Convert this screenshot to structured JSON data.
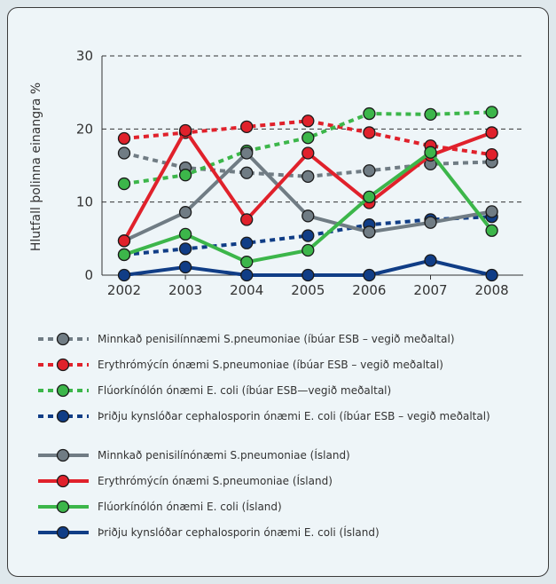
{
  "chart_data": {
    "type": "line",
    "ylabel": "Hlutfall þolinna einangra %",
    "xlabel": "",
    "ylim": [
      0,
      30
    ],
    "yticks": [
      0,
      10,
      20,
      30
    ],
    "gridlines": [
      10,
      20,
      30
    ],
    "categories": [
      "2002",
      "2003",
      "2004",
      "2005",
      "2006",
      "2007",
      "2008"
    ],
    "series": [
      {
        "name": "Minnkað penisilínnæmi S.pneumoniae (íbúar ESB – vegið meðaltal)",
        "color": "#707c84",
        "dashed": true,
        "values": [
          16.7,
          14.7,
          14.0,
          13.5,
          14.3,
          15.2,
          15.5
        ]
      },
      {
        "name": "Erythrómýcín ónæmi S.pneumoniae (íbúar ESB – vegið meðaltal)",
        "color": "#e0212b",
        "dashed": true,
        "values": [
          18.7,
          19.5,
          20.3,
          21.1,
          19.5,
          17.7,
          16.5
        ]
      },
      {
        "name": "Flúorkínólón ónæmi E. coli (íbúar ESB—vegið meðaltal)",
        "color": "#3cb64a",
        "dashed": true,
        "values": [
          12.5,
          13.7,
          17.0,
          18.8,
          22.1,
          22.0,
          22.3
        ]
      },
      {
        "name": "Þriðju kynslóðar cephalosporin ónæmi E. coli (íbúar ESB – vegið meðaltal)",
        "color": "#103d86",
        "dashed": true,
        "values": [
          2.8,
          3.6,
          4.4,
          5.4,
          6.9,
          7.6,
          8.0
        ]
      },
      {
        "name": "Minnkað penisilínónæmi S.pneumoniae (Ísland)",
        "color": "#707c84",
        "dashed": false,
        "values": [
          4.7,
          8.6,
          16.7,
          8.1,
          5.9,
          7.2,
          8.7
        ]
      },
      {
        "name": "Erythrómýcín ónæmi S.pneumoniae (Ísland)",
        "color": "#e0212b",
        "dashed": false,
        "values": [
          4.7,
          19.8,
          7.6,
          16.7,
          9.9,
          16.4,
          19.5
        ]
      },
      {
        "name": "Flúorkínólón ónæmi E. coli (Ísland)",
        "color": "#3cb64a",
        "dashed": false,
        "values": [
          2.8,
          5.6,
          1.8,
          3.4,
          10.7,
          16.8,
          6.1
        ]
      },
      {
        "name": "Þriðju kynslóðar cephalosporin ónæmi E. coli (Ísland)",
        "color": "#103d86",
        "dashed": false,
        "values": [
          0,
          1.1,
          0,
          0,
          0,
          2.0,
          0
        ]
      }
    ]
  }
}
